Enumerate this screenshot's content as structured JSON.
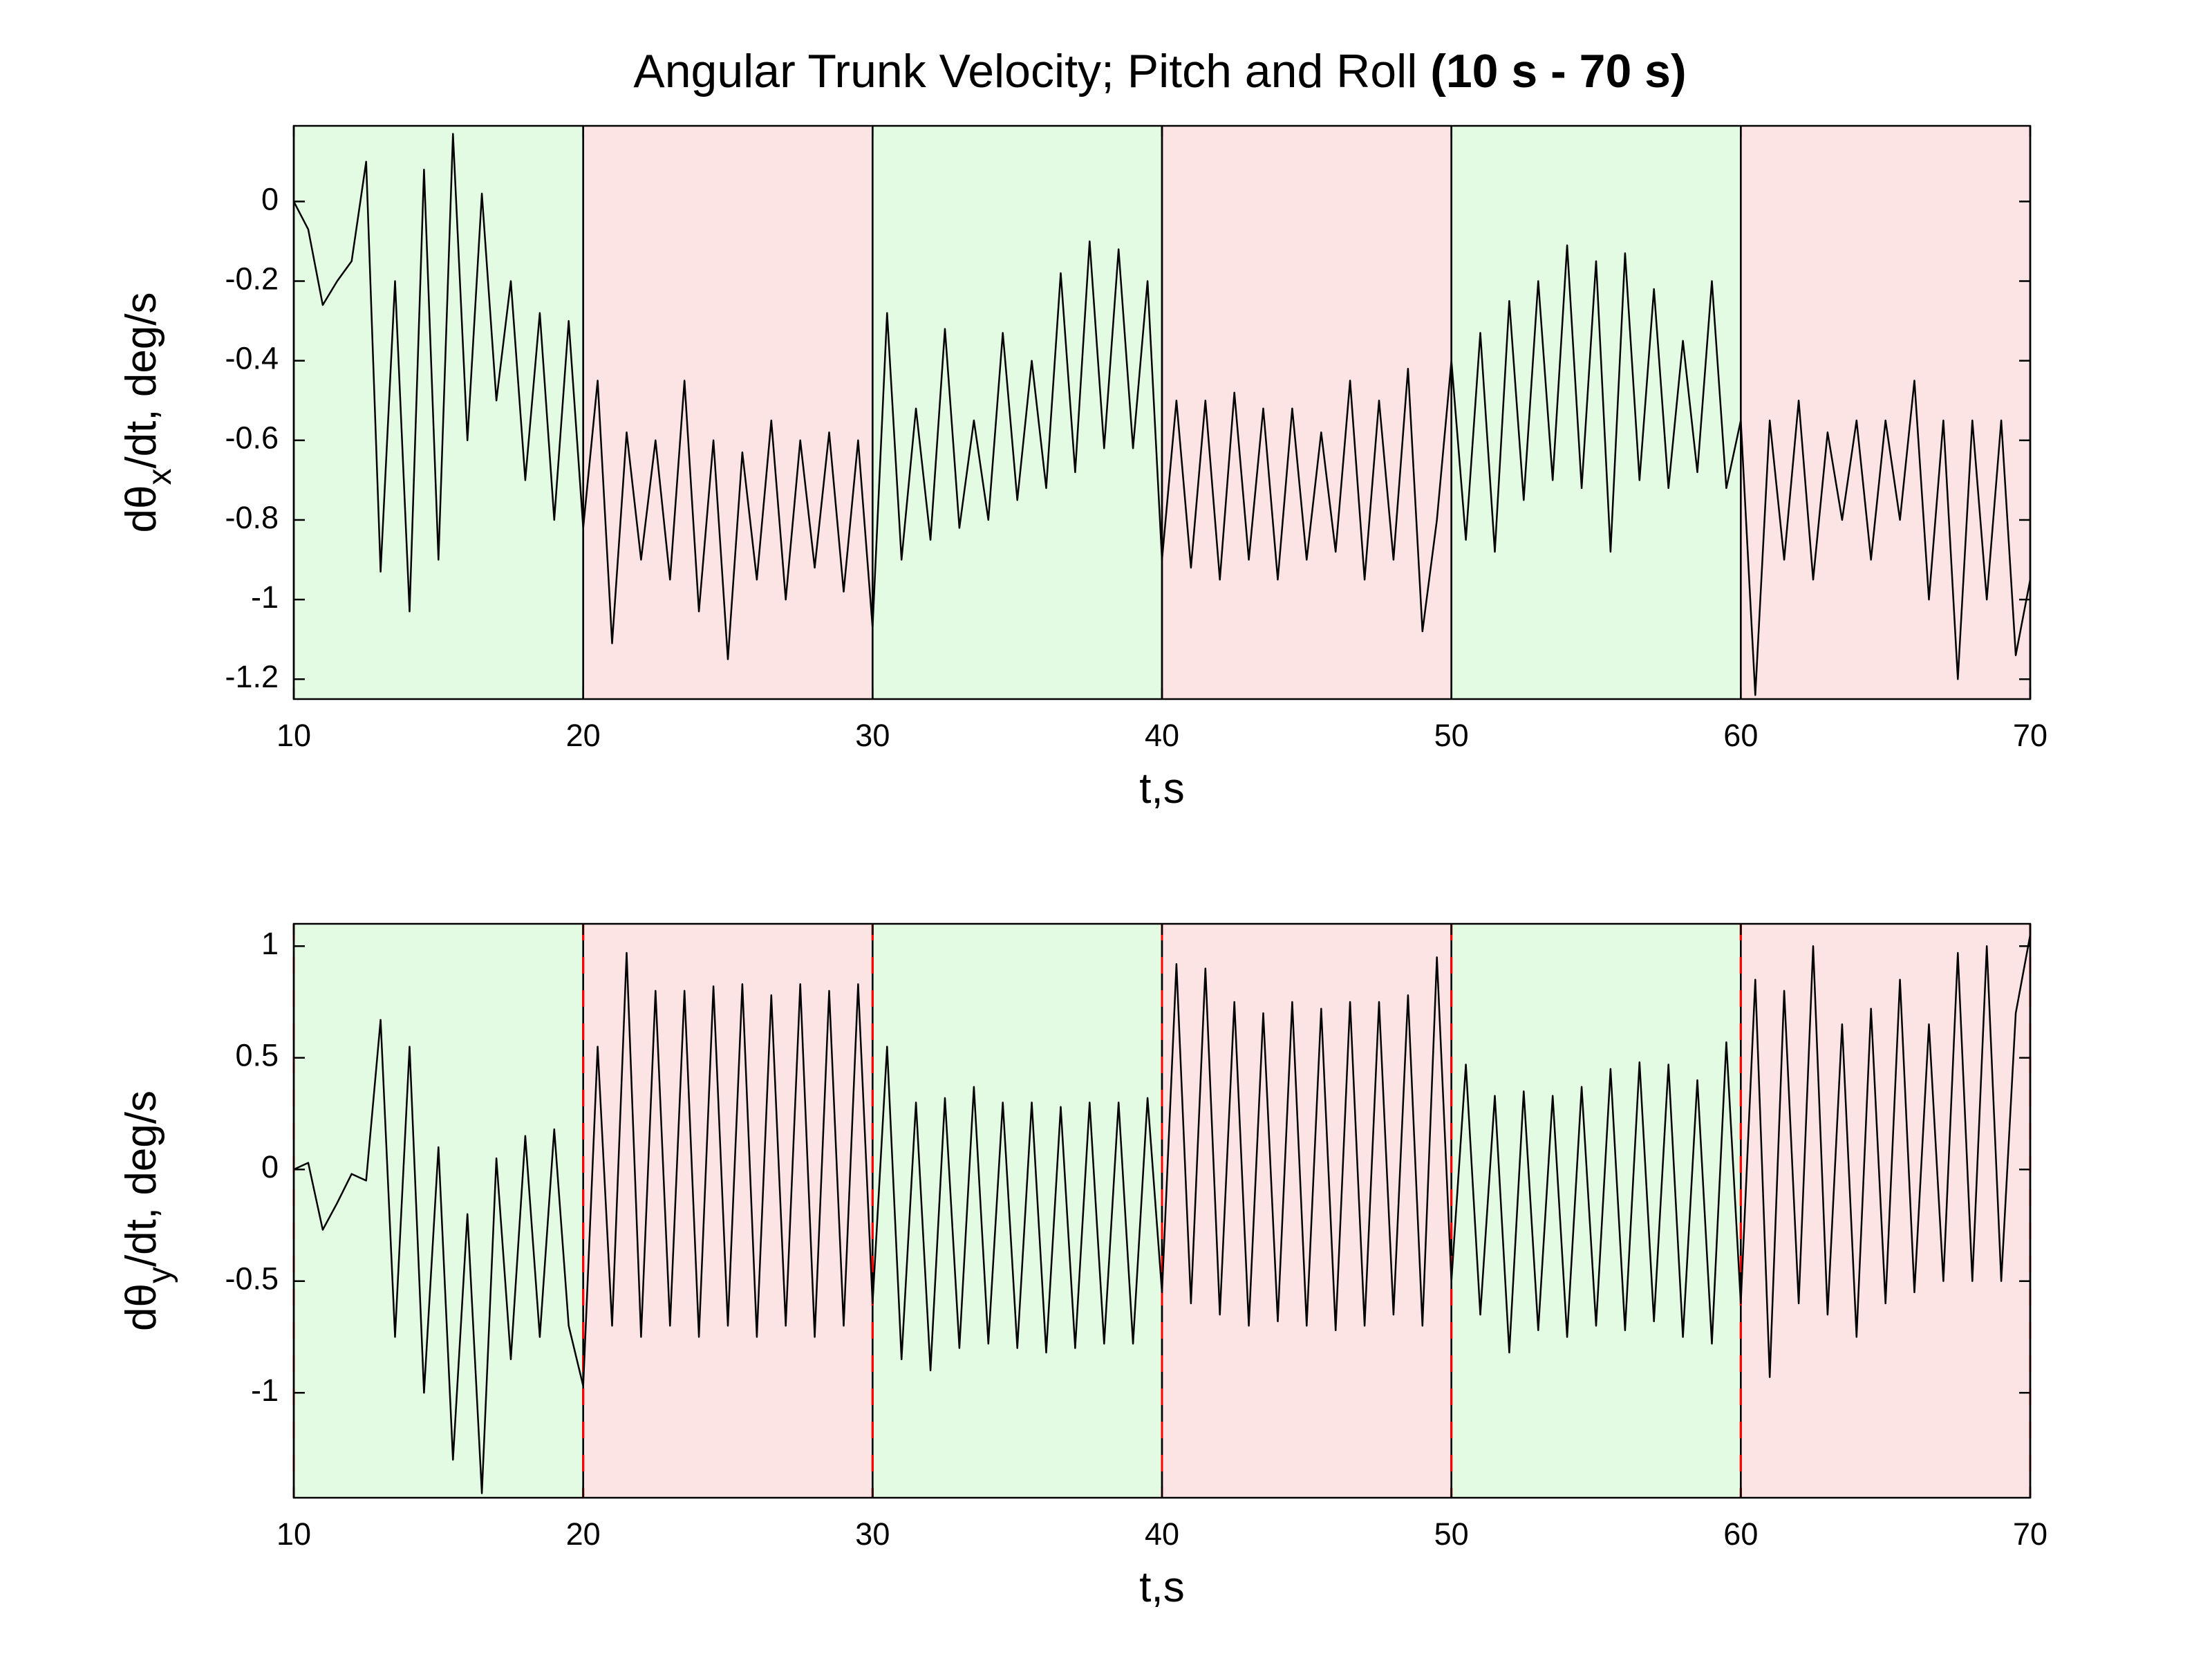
{
  "chart_data": [
    {
      "type": "line",
      "title": "Angular Trunk Velocity; Pitch and Roll",
      "title_bold": "(10 s - 70 s)",
      "xlabel": "t,s",
      "ylabel": {
        "main": "dθ",
        "sub": "x",
        "rest": "/dt, deg/s"
      },
      "xlim": [
        10,
        70
      ],
      "xticks": [
        10,
        20,
        30,
        40,
        50,
        60,
        70
      ],
      "ylim": [
        -1.25,
        0.19
      ],
      "yticks": [
        -1.2,
        -1,
        -0.8,
        -0.6,
        -0.4,
        -0.2,
        0
      ],
      "boundary_style": "solid",
      "regions": [
        {
          "start": 10,
          "end": 20,
          "color": "#e2fbe2"
        },
        {
          "start": 20,
          "end": 30,
          "color": "#fce4e4"
        },
        {
          "start": 30,
          "end": 40,
          "color": "#e2fbe2"
        },
        {
          "start": 40,
          "end": 50,
          "color": "#fce4e4"
        },
        {
          "start": 50,
          "end": 60,
          "color": "#e2fbe2"
        },
        {
          "start": 60,
          "end": 70,
          "color": "#fce4e4"
        }
      ],
      "x": [
        10,
        10.5,
        11,
        11.5,
        12,
        12.5,
        13,
        13.5,
        14,
        14.5,
        15,
        15.5,
        16,
        16.5,
        17,
        17.5,
        18,
        18.5,
        19,
        19.5,
        20,
        20.5,
        21,
        21.5,
        22,
        22.5,
        23,
        23.5,
        24,
        24.5,
        25,
        25.5,
        26,
        26.5,
        27,
        27.5,
        28,
        28.5,
        29,
        29.5,
        30,
        30.5,
        31,
        31.5,
        32,
        32.5,
        33,
        33.5,
        34,
        34.5,
        35,
        35.5,
        36,
        36.5,
        37,
        37.5,
        38,
        38.5,
        39,
        39.5,
        40,
        40.5,
        41,
        41.5,
        42,
        42.5,
        43,
        43.5,
        44,
        44.5,
        45,
        45.5,
        46,
        46.5,
        47,
        47.5,
        48,
        48.5,
        49,
        49.5,
        50,
        50.5,
        51,
        51.5,
        52,
        52.5,
        53,
        53.5,
        54,
        54.5,
        55,
        55.5,
        56,
        56.5,
        57,
        57.5,
        58,
        58.5,
        59,
        59.5,
        60,
        60.5,
        61,
        61.5,
        62,
        62.5,
        63,
        63.5,
        64,
        64.5,
        65,
        65.5,
        66,
        66.5,
        67,
        67.5,
        68,
        68.5,
        69,
        69.5,
        70
      ],
      "series": [
        {
          "color": "#000000",
          "values": [
            0,
            -0.07,
            -0.26,
            -0.2,
            -0.15,
            0.1,
            -0.93,
            -0.2,
            -1.03,
            0.08,
            -0.9,
            0.17,
            -0.6,
            0.02,
            -0.5,
            -0.2,
            -0.7,
            -0.28,
            -0.8,
            -0.3,
            -0.82,
            -0.45,
            -1.11,
            -0.58,
            -0.9,
            -0.6,
            -0.95,
            -0.45,
            -1.03,
            -0.6,
            -1.15,
            -0.63,
            -0.95,
            -0.55,
            -1.0,
            -0.6,
            -0.92,
            -0.58,
            -0.98,
            -0.6,
            -1.07,
            -0.28,
            -0.9,
            -0.52,
            -0.85,
            -0.32,
            -0.82,
            -0.55,
            -0.8,
            -0.33,
            -0.75,
            -0.4,
            -0.72,
            -0.18,
            -0.68,
            -0.1,
            -0.62,
            -0.12,
            -0.62,
            -0.2,
            -0.9,
            -0.5,
            -0.92,
            -0.5,
            -0.95,
            -0.48,
            -0.9,
            -0.52,
            -0.95,
            -0.52,
            -0.9,
            -0.58,
            -0.88,
            -0.45,
            -0.95,
            -0.5,
            -0.9,
            -0.42,
            -1.08,
            -0.8,
            -0.4,
            -0.85,
            -0.33,
            -0.88,
            -0.25,
            -0.75,
            -0.2,
            -0.7,
            -0.11,
            -0.72,
            -0.15,
            -0.88,
            -0.13,
            -0.7,
            -0.22,
            -0.72,
            -0.35,
            -0.68,
            -0.2,
            -0.72,
            -0.55,
            -1.24,
            -0.55,
            -0.9,
            -0.5,
            -0.95,
            -0.58,
            -0.8,
            -0.55,
            -0.9,
            -0.55,
            -0.8,
            -0.45,
            -1.0,
            -0.55,
            -1.2,
            -0.55,
            -1.0,
            -0.55,
            -1.14,
            -0.95
          ]
        }
      ]
    },
    {
      "type": "line",
      "xlabel": "t,s",
      "ylabel": {
        "main": "dθ",
        "sub": "y",
        "rest": "/dt, deg/s"
      },
      "xlim": [
        10,
        70
      ],
      "xticks": [
        10,
        20,
        30,
        40,
        50,
        60,
        70
      ],
      "ylim": [
        -1.47,
        1.1
      ],
      "yticks": [
        -1,
        -0.5,
        0,
        0.5,
        1
      ],
      "boundary_style": "dashed",
      "regions": [
        {
          "start": 10,
          "end": 20,
          "color": "#e2fbe2"
        },
        {
          "start": 20,
          "end": 30,
          "color": "#fce4e4"
        },
        {
          "start": 30,
          "end": 40,
          "color": "#e2fbe2"
        },
        {
          "start": 40,
          "end": 50,
          "color": "#fce4e4"
        },
        {
          "start": 50,
          "end": 60,
          "color": "#e2fbe2"
        },
        {
          "start": 60,
          "end": 70,
          "color": "#fce4e4"
        }
      ],
      "x": [
        10,
        10.5,
        11,
        11.5,
        12,
        12.5,
        13,
        13.5,
        14,
        14.5,
        15,
        15.5,
        16,
        16.5,
        17,
        17.5,
        18,
        18.5,
        19,
        19.5,
        20,
        20.5,
        21,
        21.5,
        22,
        22.5,
        23,
        23.5,
        24,
        24.5,
        25,
        25.5,
        26,
        26.5,
        27,
        27.5,
        28,
        28.5,
        29,
        29.5,
        30,
        30.5,
        31,
        31.5,
        32,
        32.5,
        33,
        33.5,
        34,
        34.5,
        35,
        35.5,
        36,
        36.5,
        37,
        37.5,
        38,
        38.5,
        39,
        39.5,
        40,
        40.5,
        41,
        41.5,
        42,
        42.5,
        43,
        43.5,
        44,
        44.5,
        45,
        45.5,
        46,
        46.5,
        47,
        47.5,
        48,
        48.5,
        49,
        49.5,
        50,
        50.5,
        51,
        51.5,
        52,
        52.5,
        53,
        53.5,
        54,
        54.5,
        55,
        55.5,
        56,
        56.5,
        57,
        57.5,
        58,
        58.5,
        59,
        59.5,
        60,
        60.5,
        61,
        61.5,
        62,
        62.5,
        63,
        63.5,
        64,
        64.5,
        65,
        65.5,
        66,
        66.5,
        67,
        67.5,
        68,
        68.5,
        69,
        69.5,
        70
      ],
      "series": [
        {
          "color": "#000000",
          "values": [
            0,
            0.03,
            -0.27,
            -0.15,
            -0.02,
            -0.05,
            0.67,
            -0.75,
            0.55,
            -1.0,
            0.1,
            -1.3,
            -0.2,
            -1.45,
            0.05,
            -0.85,
            0.15,
            -0.75,
            0.18,
            -0.7,
            -0.97,
            0.55,
            -0.7,
            0.97,
            -0.75,
            0.8,
            -0.7,
            0.8,
            -0.75,
            0.82,
            -0.7,
            0.83,
            -0.75,
            0.78,
            -0.7,
            0.83,
            -0.75,
            0.8,
            -0.7,
            0.83,
            -0.6,
            0.55,
            -0.85,
            0.3,
            -0.9,
            0.32,
            -0.8,
            0.37,
            -0.78,
            0.3,
            -0.8,
            0.3,
            -0.82,
            0.28,
            -0.8,
            0.3,
            -0.78,
            0.3,
            -0.78,
            0.32,
            -0.55,
            0.92,
            -0.6,
            0.9,
            -0.65,
            0.75,
            -0.7,
            0.7,
            -0.68,
            0.75,
            -0.7,
            0.72,
            -0.72,
            0.75,
            -0.7,
            0.75,
            -0.65,
            0.78,
            -0.7,
            0.95,
            -0.5,
            0.47,
            -0.65,
            0.33,
            -0.82,
            0.35,
            -0.72,
            0.33,
            -0.75,
            0.37,
            -0.7,
            0.45,
            -0.72,
            0.48,
            -0.68,
            0.47,
            -0.75,
            0.4,
            -0.78,
            0.57,
            -0.6,
            0.85,
            -0.93,
            0.8,
            -0.6,
            1.0,
            -0.65,
            0.65,
            -0.75,
            0.72,
            -0.6,
            0.85,
            -0.55,
            0.65,
            -0.5,
            0.97,
            -0.5,
            1.0,
            -0.5,
            0.7,
            1.05
          ]
        }
      ]
    }
  ]
}
